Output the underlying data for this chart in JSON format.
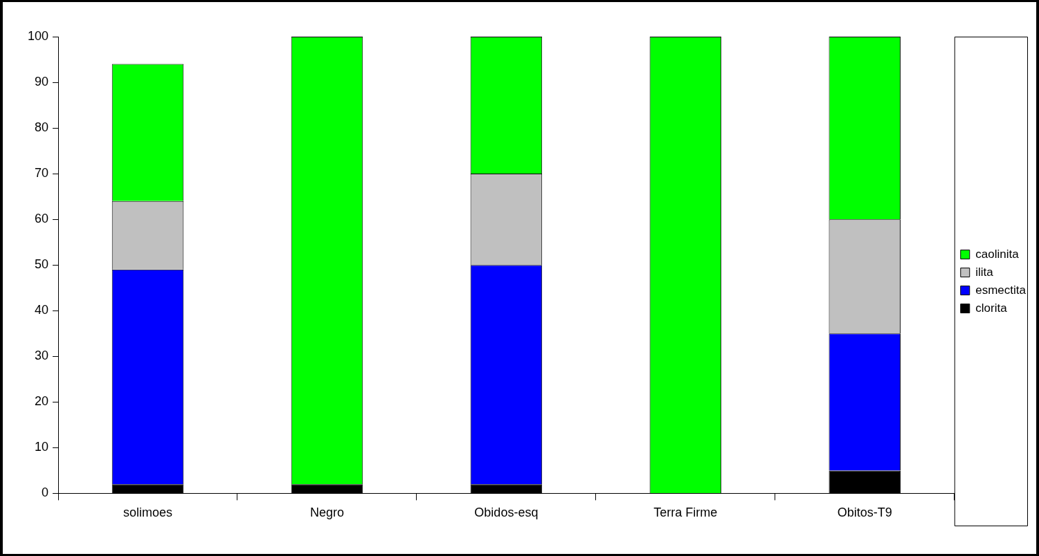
{
  "chart_data": {
    "type": "bar",
    "stacked": true,
    "categories": [
      "solimoes",
      "Negro",
      "Obidos-esq",
      "Terra Firme",
      "Obitos-T9"
    ],
    "series": [
      {
        "name": "clorita",
        "color": "#000000",
        "values": [
          2,
          2,
          2,
          0,
          5
        ]
      },
      {
        "name": "esmectita",
        "color": "#0000ff",
        "values": [
          47,
          0,
          48,
          0,
          30
        ]
      },
      {
        "name": "ilita",
        "color": "#c0c0c0",
        "values": [
          15,
          0,
          20,
          0,
          25
        ]
      },
      {
        "name": "caolinita",
        "color": "#00ff00",
        "values": [
          30,
          98,
          30,
          100,
          40
        ]
      }
    ],
    "ylim": [
      0,
      100
    ],
    "yticks": [
      0,
      10,
      20,
      30,
      40,
      50,
      60,
      70,
      80,
      90,
      100
    ],
    "grid": false,
    "legend": "right"
  }
}
